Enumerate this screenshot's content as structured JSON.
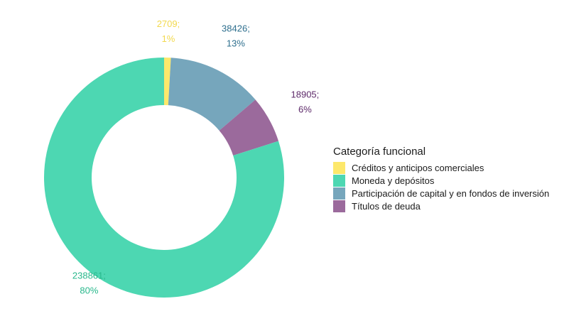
{
  "chart_data": {
    "type": "pie",
    "subtype": "donut",
    "legend_title": "Categoría funcional",
    "legend_position": "right",
    "slices": [
      {
        "category": "Créditos y anticipos comerciales",
        "value": 2709,
        "percent": "1%",
        "label": "2709;",
        "color": "#FDE86B"
      },
      {
        "category": "Participación de capital y en fondos de inversión",
        "value": 38426,
        "percent": "13%",
        "label": "38426;",
        "color": "#76A6BC"
      },
      {
        "category": "Títulos de deuda",
        "value": 18905,
        "percent": "6%",
        "label": "18905;",
        "color": "#9B6A9C"
      },
      {
        "category": "Moneda y depósitos",
        "value": 238861,
        "percent": "80%",
        "label": "238861;",
        "color": "#4DD7B2"
      }
    ],
    "label_colors": {
      "Créditos y anticipos comerciales": "#F2D94E",
      "Participación de capital y en fondos de inversión": "#2E6F8E",
      "Títulos de deuda": "#5E2A6A",
      "Moneda y depósitos": "#29B88C"
    },
    "legend_order": [
      "Créditos y anticipos comerciales",
      "Moneda y depósitos",
      "Participación de capital y en fondos de inversión",
      "Títulos de deuda"
    ]
  }
}
